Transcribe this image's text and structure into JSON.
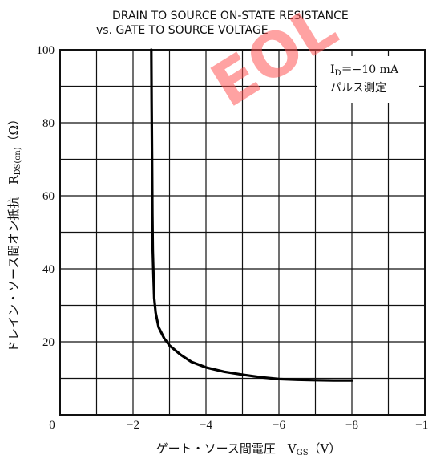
{
  "chart_data": {
    "type": "line",
    "title": [
      "DRAIN TO SOURCE ON-STATE RESISTANCE",
      "vs. GATE TO SOURCE VOLTAGE"
    ],
    "xlabel": "ゲート・ソース間電圧　V_GS（V）",
    "ylabel": "ドレイン・ソース間オン抵抗　R_DS(on)（Ω）",
    "xlim": [
      0,
      -10
    ],
    "ylim": [
      0,
      100
    ],
    "x_ticks": [
      "0",
      "−2",
      "−4",
      "−6",
      "−8",
      "−10"
    ],
    "y_ticks": [
      "20",
      "40",
      "60",
      "80",
      "100"
    ],
    "grid": true,
    "annotation": [
      "I_D＝−10 mA",
      "パルス測定"
    ],
    "watermark": "EOL",
    "series": [
      {
        "x": [
          -2.5,
          -2.51,
          -2.52,
          -2.53,
          -2.54,
          -2.56,
          -2.58,
          -2.62,
          -2.7,
          -2.85,
          -3.0,
          -3.3,
          -3.6,
          -4.0,
          -4.5,
          -5.0,
          -5.5,
          -6.0,
          -6.5,
          -7.0,
          -7.5,
          -8.0
        ],
        "y": [
          100,
          85,
          70,
          55,
          45,
          38,
          32,
          28,
          24,
          21,
          19,
          16.5,
          14.5,
          13,
          11.8,
          11,
          10.3,
          9.8,
          9.6,
          9.5,
          9.4,
          9.4
        ]
      }
    ]
  }
}
